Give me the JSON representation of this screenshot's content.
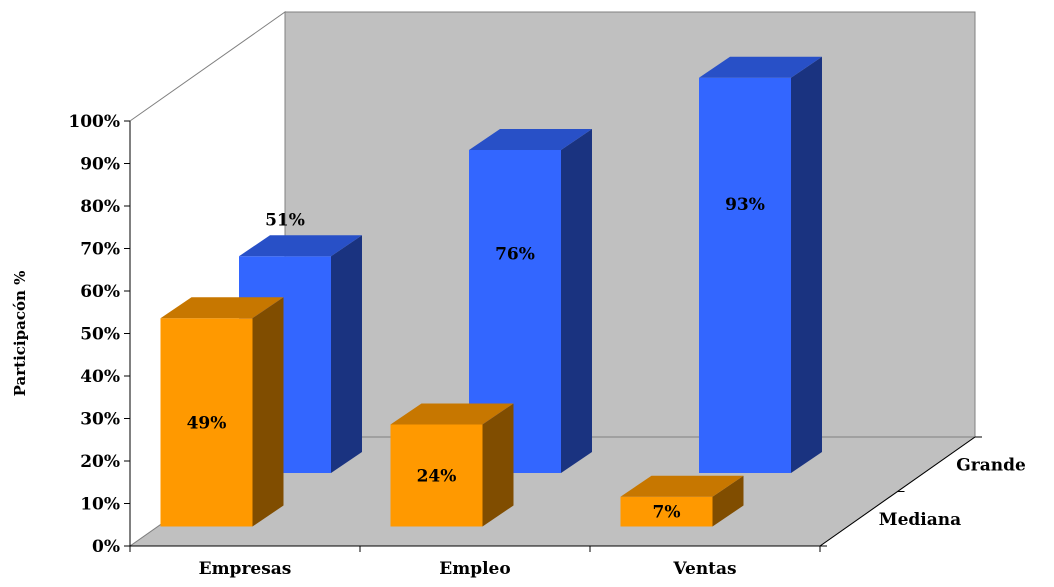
{
  "chart_data": {
    "type": "bar",
    "style": "3d-column",
    "categories": [
      "Empresas",
      "Empleo",
      "Ventas"
    ],
    "series": [
      {
        "name": "Mediana",
        "values": [
          49,
          24,
          7
        ],
        "labels": [
          "49%",
          "24%",
          "7%"
        ],
        "color": "#FF9900"
      },
      {
        "name": "Grande",
        "values": [
          51,
          76,
          93
        ],
        "labels": [
          "51%",
          "76%",
          "93%"
        ],
        "color": "#3366FF"
      }
    ],
    "ylabel": "Participacón %",
    "ylim": [
      0,
      100
    ],
    "yticks": [
      "0%",
      "10%",
      "20%",
      "30%",
      "40%",
      "50%",
      "60%",
      "70%",
      "80%",
      "90%",
      "100%"
    ],
    "grid": false,
    "wall_color": "#C0C0C0",
    "legend": "none"
  }
}
